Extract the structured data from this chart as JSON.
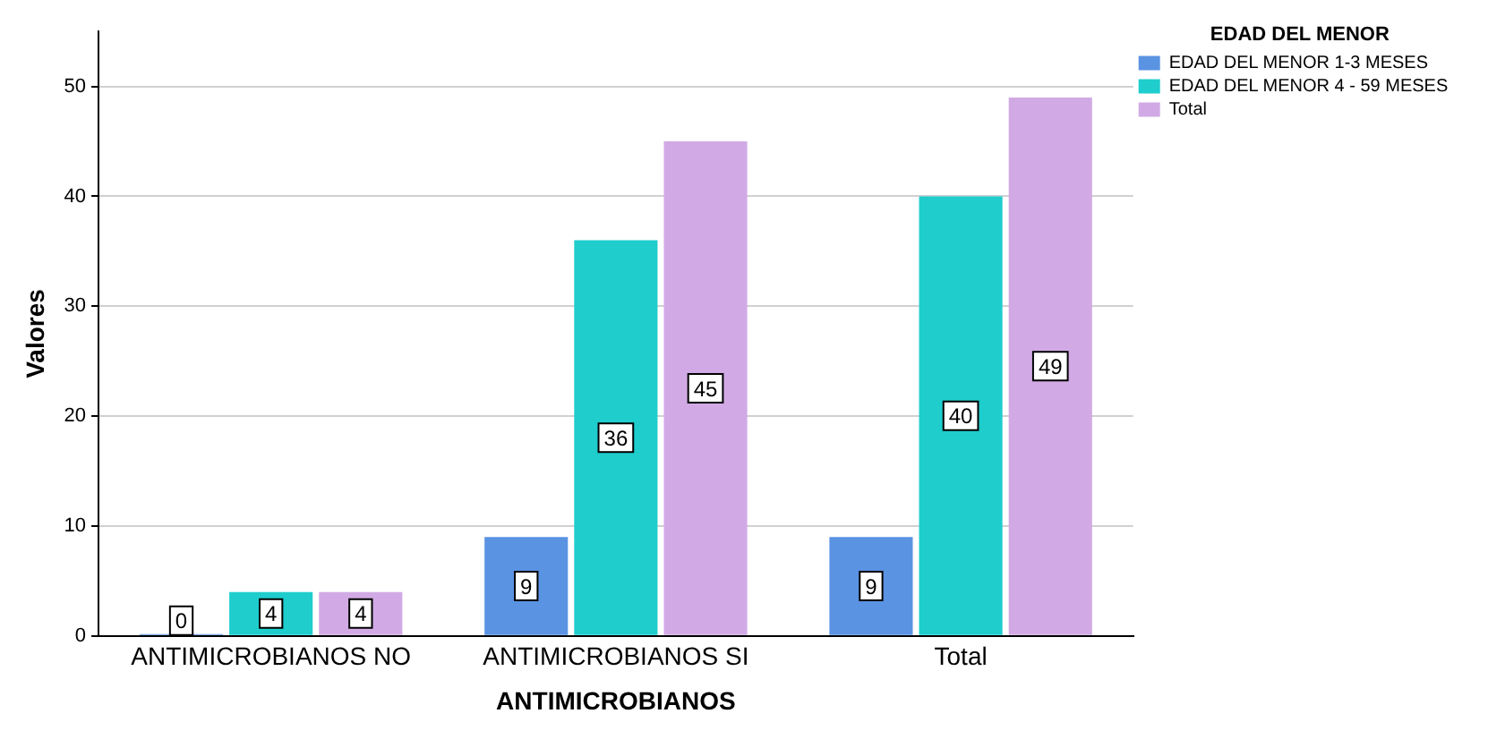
{
  "chart_data": {
    "type": "bar",
    "xlabel": "ANTIMICROBIANOS",
    "ylabel": "Valores",
    "legend_title": "EDAD DEL MENOR",
    "categories": [
      "ANTIMICROBIANOS NO",
      "ANTIMICROBIANOS SI",
      "Total"
    ],
    "series": [
      {
        "name": "EDAD DEL MENOR 1-3 MESES",
        "color": "#5b93e3",
        "values": [
          0,
          9,
          9
        ]
      },
      {
        "name": "EDAD DEL MENOR 4 - 59 MESES",
        "color": "#1fcdcd",
        "values": [
          4,
          36,
          40
        ]
      },
      {
        "name": "Total",
        "color": "#d1aae5",
        "values": [
          4,
          45,
          49
        ]
      }
    ],
    "ylim": [
      0,
      55
    ],
    "yticks": [
      0,
      10,
      20,
      30,
      40,
      50
    ],
    "grid": "y",
    "legend": "top right",
    "data_labels": true
  }
}
